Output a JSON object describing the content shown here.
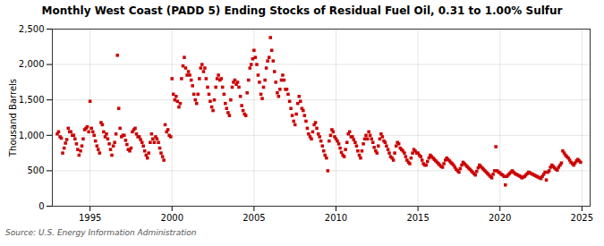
{
  "chart_data": {
    "type": "scatter",
    "title": "Monthly West Coast (PADD 5) Ending Stocks of Residual Fuel Oil, 0.31 to 1.00% Sulfur",
    "ylabel": "Thousand Barrels",
    "source": "Source: U.S. Energy Information Administration",
    "color": "#cc0000",
    "marker": "square",
    "grid": true,
    "xlim": [
      1992.7,
      2025.5
    ],
    "ylim": [
      0,
      2500
    ],
    "xticks": [
      1995,
      2000,
      2005,
      2010,
      2015,
      2020,
      2025
    ],
    "yticks": [
      0,
      500,
      {
        "value": 1000,
        "label": "1,000"
      },
      {
        "value": 1500,
        "label": "1,500"
      },
      {
        "value": 2000,
        "label": "2,000"
      },
      {
        "value": 2500,
        "label": "2,500"
      }
    ],
    "x": [
      1993.0,
      1993.08,
      1993.17,
      1993.25,
      1993.33,
      1993.42,
      1993.5,
      1993.58,
      1993.67,
      1993.75,
      1993.83,
      1993.92,
      1994.0,
      1994.08,
      1994.17,
      1994.25,
      1994.33,
      1994.42,
      1994.5,
      1994.58,
      1994.67,
      1994.75,
      1994.83,
      1994.92,
      1995.0,
      1995.08,
      1995.17,
      1995.25,
      1995.33,
      1995.42,
      1995.5,
      1995.58,
      1995.67,
      1995.75,
      1995.83,
      1995.92,
      1996.0,
      1996.08,
      1996.17,
      1996.25,
      1996.33,
      1996.42,
      1996.5,
      1996.58,
      1996.67,
      1996.75,
      1996.83,
      1996.92,
      1997.0,
      1997.08,
      1997.17,
      1997.25,
      1997.33,
      1997.42,
      1997.5,
      1997.58,
      1997.67,
      1997.75,
      1997.83,
      1997.92,
      1998.0,
      1998.08,
      1998.17,
      1998.25,
      1998.33,
      1998.42,
      1998.5,
      1998.58,
      1998.67,
      1998.75,
      1998.83,
      1998.92,
      1999.0,
      1999.08,
      1999.17,
      1999.25,
      1999.33,
      1999.42,
      1999.5,
      1999.58,
      1999.67,
      1999.75,
      1999.83,
      1999.92,
      2000.0,
      2000.08,
      2000.17,
      2000.25,
      2000.33,
      2000.42,
      2000.5,
      2000.58,
      2000.67,
      2000.75,
      2000.83,
      2000.92,
      2001.0,
      2001.08,
      2001.17,
      2001.25,
      2001.33,
      2001.42,
      2001.5,
      2001.58,
      2001.67,
      2001.75,
      2001.83,
      2001.92,
      2002.0,
      2002.08,
      2002.17,
      2002.25,
      2002.33,
      2002.42,
      2002.5,
      2002.58,
      2002.67,
      2002.75,
      2002.83,
      2002.92,
      2003.0,
      2003.08,
      2003.17,
      2003.25,
      2003.33,
      2003.42,
      2003.5,
      2003.58,
      2003.67,
      2003.75,
      2003.83,
      2003.92,
      2004.0,
      2004.08,
      2004.17,
      2004.25,
      2004.33,
      2004.42,
      2004.5,
      2004.58,
      2004.67,
      2004.75,
      2004.83,
      2004.92,
      2005.0,
      2005.08,
      2005.17,
      2005.25,
      2005.33,
      2005.42,
      2005.5,
      2005.58,
      2005.67,
      2005.75,
      2005.83,
      2005.92,
      2006.0,
      2006.08,
      2006.17,
      2006.25,
      2006.33,
      2006.42,
      2006.5,
      2006.58,
      2006.67,
      2006.75,
      2006.83,
      2006.92,
      2007.0,
      2007.08,
      2007.17,
      2007.25,
      2007.33,
      2007.42,
      2007.5,
      2007.58,
      2007.67,
      2007.75,
      2007.83,
      2007.92,
      2008.0,
      2008.08,
      2008.17,
      2008.25,
      2008.33,
      2008.42,
      2008.5,
      2008.58,
      2008.67,
      2008.75,
      2008.83,
      2008.92,
      2009.0,
      2009.08,
      2009.17,
      2009.25,
      2009.33,
      2009.42,
      2009.5,
      2009.58,
      2009.67,
      2009.75,
      2009.83,
      2009.92,
      2010.0,
      2010.08,
      2010.17,
      2010.25,
      2010.33,
      2010.42,
      2010.5,
      2010.58,
      2010.67,
      2010.75,
      2010.83,
      2010.92,
      2011.0,
      2011.08,
      2011.17,
      2011.25,
      2011.33,
      2011.42,
      2011.5,
      2011.58,
      2011.67,
      2011.75,
      2011.83,
      2011.92,
      2012.0,
      2012.08,
      2012.17,
      2012.25,
      2012.33,
      2012.42,
      2012.5,
      2012.58,
      2012.67,
      2012.75,
      2012.83,
      2012.92,
      2013.0,
      2013.08,
      2013.17,
      2013.25,
      2013.33,
      2013.42,
      2013.5,
      2013.58,
      2013.67,
      2013.75,
      2013.83,
      2013.92,
      2014.0,
      2014.08,
      2014.17,
      2014.25,
      2014.33,
      2014.42,
      2014.5,
      2014.58,
      2014.67,
      2014.75,
      2014.83,
      2014.92,
      2015.0,
      2015.08,
      2015.17,
      2015.25,
      2015.33,
      2015.42,
      2015.5,
      2015.58,
      2015.67,
      2015.75,
      2015.83,
      2015.92,
      2016.0,
      2016.08,
      2016.17,
      2016.25,
      2016.33,
      2016.42,
      2016.5,
      2016.58,
      2016.67,
      2016.75,
      2016.83,
      2016.92,
      2017.0,
      2017.08,
      2017.17,
      2017.25,
      2017.33,
      2017.42,
      2017.5,
      2017.58,
      2017.67,
      2017.75,
      2017.83,
      2017.92,
      2018.0,
      2018.08,
      2018.17,
      2018.25,
      2018.33,
      2018.42,
      2018.5,
      2018.58,
      2018.67,
      2018.75,
      2018.83,
      2018.92,
      2019.0,
      2019.08,
      2019.17,
      2019.25,
      2019.33,
      2019.42,
      2019.5,
      2019.58,
      2019.67,
      2019.75,
      2019.83,
      2019.92,
      2020.0,
      2020.08,
      2020.17,
      2020.25,
      2020.33,
      2020.42,
      2020.5,
      2020.58,
      2020.67,
      2020.75,
      2020.83,
      2020.92,
      2021.0,
      2021.08,
      2021.17,
      2021.25,
      2021.33,
      2021.42,
      2021.5,
      2021.58,
      2021.67,
      2021.75,
      2021.83,
      2021.92,
      2022.0,
      2022.08,
      2022.17,
      2022.25,
      2022.33,
      2022.42,
      2022.5,
      2022.58,
      2022.67,
      2022.75,
      2022.83,
      2022.92,
      2023.0,
      2023.08,
      2023.17,
      2023.25,
      2023.33,
      2023.42,
      2023.5,
      2023.58,
      2023.67,
      2023.75,
      2023.83,
      2023.92,
      2024.0,
      2024.08,
      2024.17,
      2024.25,
      2024.33,
      2024.42,
      2024.5,
      2024.58,
      2024.67,
      2024.75,
      2024.83,
      2024.92
    ],
    "values": [
      1020,
      1050,
      980,
      960,
      750,
      820,
      890,
      940,
      1100,
      1050,
      1050,
      1000,
      1000,
      950,
      880,
      800,
      720,
      780,
      850,
      950,
      1080,
      1100,
      1120,
      1050,
      1480,
      1100,
      1050,
      1000,
      920,
      850,
      800,
      750,
      1180,
      1150,
      1050,
      980,
      1020,
      950,
      880,
      800,
      720,
      850,
      900,
      1020,
      2130,
      1380,
      1100,
      980,
      1000,
      1000,
      930,
      870,
      800,
      780,
      820,
      1050,
      1080,
      1100,
      1020,
      980,
      980,
      940,
      900,
      850,
      780,
      720,
      680,
      750,
      900,
      1020,
      950,
      900,
      980,
      950,
      900,
      820,
      750,
      700,
      650,
      1150,
      1050,
      1080,
      1000,
      980,
      1800,
      1580,
      1500,
      1550,
      1480,
      1400,
      1450,
      1800,
      1980,
      2100,
      1950,
      1850,
      1900,
      1850,
      1780,
      1700,
      1580,
      1500,
      1450,
      1580,
      1800,
      1950,
      2000,
      1900,
      1950,
      1800,
      1680,
      1580,
      1480,
      1400,
      1350,
      1500,
      1680,
      1800,
      1850,
      1780,
      1800,
      1680,
      1580,
      1450,
      1380,
      1320,
      1280,
      1500,
      1680,
      1750,
      1780,
      1720,
      1750,
      1680,
      1550,
      1420,
      1350,
      1300,
      1280,
      1600,
      1780,
      1950,
      2000,
      2080,
      2200,
      2100,
      2000,
      1850,
      1750,
      1580,
      1520,
      1680,
      1780,
      1950,
      2050,
      2100,
      2380,
      2200,
      2050,
      1900,
      1750,
      1600,
      1550,
      1650,
      1780,
      1850,
      1780,
      1650,
      1650,
      1580,
      1480,
      1380,
      1280,
      1200,
      1150,
      1300,
      1450,
      1550,
      1480,
      1380,
      1350,
      1280,
      1200,
      1100,
      1020,
      980,
      950,
      1050,
      1150,
      1180,
      1100,
      1020,
      980,
      920,
      850,
      780,
      720,
      680,
      500,
      920,
      1000,
      1080,
      1050,
      980,
      950,
      920,
      880,
      820,
      760,
      720,
      700,
      800,
      900,
      1020,
      1050,
      980,
      980,
      940,
      900,
      850,
      780,
      720,
      680,
      780,
      880,
      950,
      1000,
      950,
      1050,
      1000,
      950,
      900,
      830,
      780,
      750,
      850,
      950,
      1020,
      980,
      920,
      900,
      850,
      800,
      750,
      700,
      680,
      650,
      750,
      850,
      900,
      880,
      820,
      800,
      780,
      750,
      700,
      650,
      620,
      600,
      680,
      750,
      800,
      780,
      750,
      750,
      720,
      700,
      650,
      600,
      580,
      580,
      630,
      680,
      720,
      700,
      680,
      660,
      640,
      620,
      600,
      580,
      560,
      550,
      600,
      650,
      680,
      660,
      640,
      620,
      600,
      580,
      550,
      520,
      500,
      480,
      530,
      580,
      620,
      600,
      580,
      560,
      540,
      520,
      500,
      480,
      460,
      440,
      490,
      540,
      580,
      560,
      540,
      520,
      500,
      480,
      460,
      440,
      420,
      400,
      450,
      500,
      840,
      500,
      480,
      470,
      450,
      440,
      420,
      300,
      420,
      440,
      460,
      480,
      500,
      480,
      460,
      450,
      440,
      430,
      420,
      400,
      410,
      420,
      440,
      460,
      480,
      470,
      460,
      450,
      440,
      430,
      420,
      410,
      400,
      390,
      420,
      450,
      480,
      370,
      480,
      500,
      550,
      580,
      560,
      540,
      520,
      510,
      550,
      580,
      610,
      780,
      750,
      720,
      700,
      680,
      650,
      620,
      600,
      580,
      610,
      640,
      660,
      640,
      620
    ]
  }
}
